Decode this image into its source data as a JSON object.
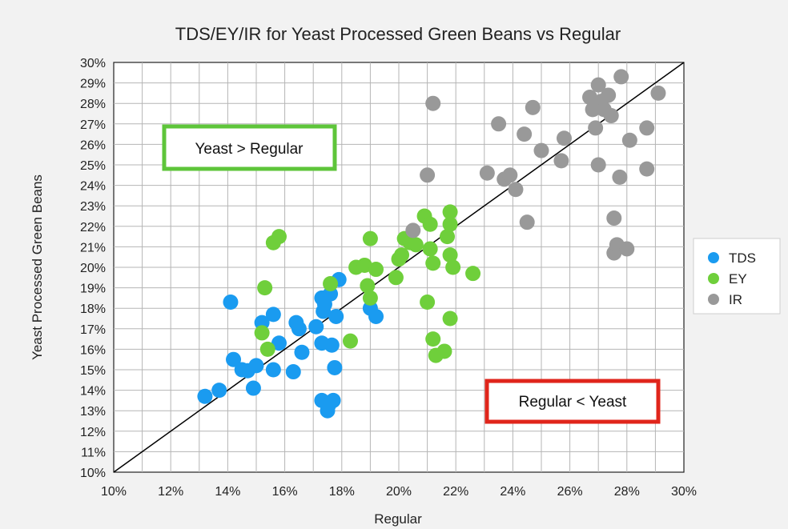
{
  "chart_data": {
    "type": "scatter",
    "title": "TDS/EY/IR for Yeast Processed Green Beans vs Regular",
    "xlabel": "Regular",
    "ylabel": "Yeast Processed Green Beans",
    "xlim": [
      10,
      30
    ],
    "ylim": [
      10,
      30
    ],
    "x_ticks": [
      "10%",
      "12%",
      "14%",
      "16%",
      "18%",
      "20%",
      "22%",
      "24%",
      "26%",
      "28%",
      "30%"
    ],
    "y_ticks": [
      "10%",
      "11%",
      "12%",
      "13%",
      "14%",
      "15%",
      "16%",
      "17%",
      "18%",
      "19%",
      "20%",
      "21%",
      "22%",
      "23%",
      "24%",
      "25%",
      "26%",
      "27%",
      "28%",
      "29%",
      "30%"
    ],
    "grid": true,
    "legend_position": "right",
    "reference_line": "y = x",
    "annotations": [
      {
        "text": "Yeast > Regular",
        "border_color": "#5ec53a"
      },
      {
        "text": "Regular < Yeast",
        "border_color": "#e0251b"
      }
    ],
    "series": [
      {
        "name": "TDS",
        "color": "#1a9bf0",
        "points": [
          [
            13.2,
            13.7
          ],
          [
            13.7,
            14.0
          ],
          [
            14.1,
            18.3
          ],
          [
            14.2,
            15.5
          ],
          [
            14.5,
            15.0
          ],
          [
            14.7,
            14.95
          ],
          [
            14.9,
            14.1
          ],
          [
            15.0,
            15.2
          ],
          [
            15.2,
            17.3
          ],
          [
            15.6,
            15.0
          ],
          [
            15.6,
            17.7
          ],
          [
            15.8,
            16.3
          ],
          [
            16.3,
            14.9
          ],
          [
            16.4,
            17.3
          ],
          [
            16.5,
            17.0
          ],
          [
            16.6,
            15.85
          ],
          [
            17.1,
            17.1
          ],
          [
            17.3,
            16.3
          ],
          [
            17.3,
            13.5
          ],
          [
            17.3,
            18.5
          ],
          [
            17.35,
            17.85
          ],
          [
            17.4,
            18.2
          ],
          [
            17.5,
            13.0
          ],
          [
            17.55,
            13.3
          ],
          [
            17.6,
            18.7
          ],
          [
            17.65,
            16.2
          ],
          [
            17.7,
            13.5
          ],
          [
            17.75,
            15.1
          ],
          [
            17.8,
            17.6
          ],
          [
            17.9,
            19.4
          ],
          [
            19.0,
            18.0
          ],
          [
            19.2,
            17.6
          ]
        ]
      },
      {
        "name": "EY",
        "color": "#6fcf3b",
        "points": [
          [
            15.2,
            16.8
          ],
          [
            15.3,
            19.0
          ],
          [
            15.4,
            16.0
          ],
          [
            15.6,
            21.2
          ],
          [
            15.8,
            21.5
          ],
          [
            17.6,
            19.2
          ],
          [
            18.3,
            16.4
          ],
          [
            18.5,
            20.0
          ],
          [
            18.8,
            20.1
          ],
          [
            18.9,
            19.1
          ],
          [
            19.0,
            21.4
          ],
          [
            19.0,
            18.5
          ],
          [
            19.2,
            19.9
          ],
          [
            19.9,
            19.5
          ],
          [
            20.0,
            20.4
          ],
          [
            20.1,
            20.6
          ],
          [
            20.2,
            21.4
          ],
          [
            20.4,
            21.2
          ],
          [
            20.6,
            21.1
          ],
          [
            20.9,
            22.5
          ],
          [
            21.0,
            18.3
          ],
          [
            21.1,
            22.1
          ],
          [
            21.1,
            20.9
          ],
          [
            21.2,
            20.2
          ],
          [
            21.2,
            16.5
          ],
          [
            21.3,
            15.7
          ],
          [
            21.6,
            15.9
          ],
          [
            21.7,
            21.5
          ],
          [
            21.8,
            22.1
          ],
          [
            21.8,
            22.7
          ],
          [
            21.8,
            20.6
          ],
          [
            21.9,
            20.0
          ],
          [
            21.8,
            17.5
          ],
          [
            22.6,
            19.7
          ]
        ]
      },
      {
        "name": "IR",
        "color": "#999999",
        "points": [
          [
            20.5,
            21.8
          ],
          [
            21.0,
            24.5
          ],
          [
            21.2,
            28.0
          ],
          [
            23.1,
            24.6
          ],
          [
            23.5,
            27.0
          ],
          [
            23.7,
            24.3
          ],
          [
            23.9,
            24.5
          ],
          [
            24.1,
            23.8
          ],
          [
            24.4,
            26.5
          ],
          [
            24.5,
            22.2
          ],
          [
            24.7,
            27.8
          ],
          [
            25.0,
            25.7
          ],
          [
            25.7,
            25.2
          ],
          [
            25.8,
            26.3
          ],
          [
            26.7,
            28.3
          ],
          [
            26.8,
            27.7
          ],
          [
            26.9,
            26.8
          ],
          [
            27.0,
            25.0
          ],
          [
            27.0,
            28.9
          ],
          [
            27.1,
            28.1
          ],
          [
            27.2,
            27.7
          ],
          [
            27.35,
            28.4
          ],
          [
            27.45,
            27.4
          ],
          [
            27.55,
            22.4
          ],
          [
            27.55,
            20.7
          ],
          [
            27.65,
            21.1
          ],
          [
            27.75,
            24.4
          ],
          [
            27.8,
            29.3
          ],
          [
            28.0,
            20.9
          ],
          [
            28.1,
            26.2
          ],
          [
            28.7,
            24.8
          ],
          [
            28.7,
            26.8
          ],
          [
            29.1,
            28.5
          ]
        ]
      }
    ]
  }
}
